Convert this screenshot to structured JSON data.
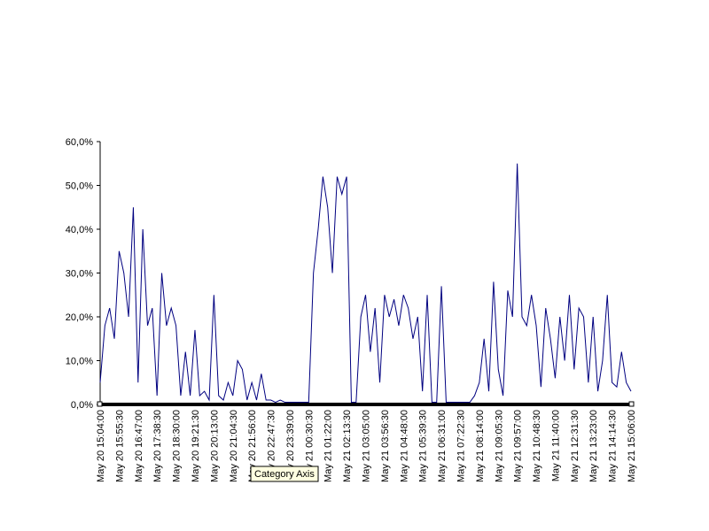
{
  "chart_data": {
    "type": "line",
    "tooltip": "Category Axis",
    "categories": [
      "May 20 15:04:00",
      null,
      null,
      null,
      "May 20 15:55:30",
      null,
      null,
      null,
      "May 20 16:47:00",
      null,
      null,
      null,
      "May 20 17:38:30",
      null,
      null,
      null,
      "May 20 18:30:00",
      null,
      null,
      null,
      "May 20 19:21:30",
      null,
      null,
      null,
      "May 20 20:13:00",
      null,
      null,
      null,
      "May 20 21:04:30",
      null,
      null,
      null,
      "May 20 21:56:00",
      null,
      null,
      null,
      "May 20 22:47:30",
      null,
      null,
      null,
      "May 20 23:39:00",
      null,
      null,
      null,
      "May 21 00:30:30",
      null,
      null,
      null,
      "May 21 01:22:00",
      null,
      null,
      null,
      "May 21 02:13:30",
      null,
      null,
      null,
      "May 21 03:05:00",
      null,
      null,
      null,
      "May 21 03:56:30",
      null,
      null,
      null,
      "May 21 04:48:00",
      null,
      null,
      null,
      "May 21 05:39:30",
      null,
      null,
      null,
      "May 21 06:31:00",
      null,
      null,
      null,
      "May 21 07:22:30",
      null,
      null,
      null,
      "May 21 08:14:00",
      null,
      null,
      null,
      "May 21 09:05:30",
      null,
      null,
      null,
      "May 21 09:57:00",
      null,
      null,
      null,
      "May 21 10:48:30",
      null,
      null,
      null,
      "May 21 11:40:00",
      null,
      null,
      null,
      "May 21 12:31:30",
      null,
      null,
      null,
      "May 21 13:23:00",
      null,
      null,
      null,
      "May 21 14:14:30",
      null,
      null,
      null,
      "May 21 15:06:00"
    ],
    "values": [
      5,
      18,
      22,
      15,
      35,
      30,
      20,
      45,
      5,
      40,
      18,
      22,
      2,
      30,
      18,
      22,
      18,
      2,
      12,
      2,
      17,
      2,
      3,
      1,
      25,
      2,
      1,
      5,
      2,
      10,
      8,
      1,
      5,
      1,
      7,
      1,
      1,
      0.5,
      1,
      0.5,
      0.5,
      0.5,
      0.5,
      0.5,
      0.5,
      30,
      40,
      52,
      45,
      30,
      52,
      48,
      52,
      0.5,
      0.5,
      20,
      25,
      12,
      22,
      5,
      25,
      20,
      24,
      18,
      25,
      22,
      15,
      20,
      3,
      25,
      0.5,
      0.5,
      27,
      0.5,
      0.5,
      0.5,
      0.5,
      0.5,
      0.5,
      2,
      5,
      15,
      3,
      28,
      8,
      2,
      26,
      20,
      55,
      20,
      18,
      25,
      18,
      4,
      22,
      15,
      6,
      20,
      10,
      25,
      8,
      22,
      20,
      5,
      20,
      3,
      10,
      25,
      5,
      4,
      12,
      5,
      3
    ],
    "color": "#000080",
    "ylim": [
      0,
      60
    ],
    "yticks": [
      {
        "value": 0,
        "label": "0,0%"
      },
      {
        "value": 10,
        "label": "10,0%"
      },
      {
        "value": 20,
        "label": "20,0%"
      },
      {
        "value": 30,
        "label": "30,0%"
      },
      {
        "value": 40,
        "label": "40,0%"
      },
      {
        "value": 50,
        "label": "50,0%"
      },
      {
        "value": 60,
        "label": "60,0%"
      }
    ]
  }
}
